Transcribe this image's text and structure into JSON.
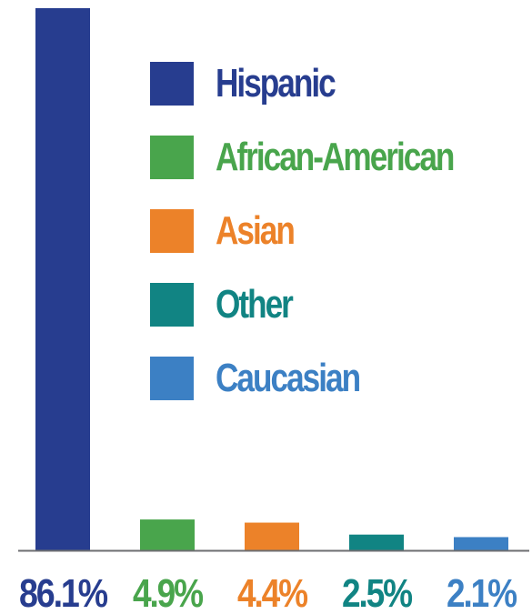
{
  "chart_data": {
    "type": "bar",
    "title": "",
    "xlabel": "",
    "ylabel": "",
    "ylim": [
      0,
      86.1
    ],
    "grid": false,
    "legend_placement": "top-right",
    "categories": [
      "Hispanic",
      "African-American",
      "Asian",
      "Other",
      "Caucasian"
    ],
    "values": [
      86.1,
      4.9,
      4.4,
      2.5,
      2.1
    ],
    "value_labels": [
      "86.1%",
      "4.9%",
      "4.4%",
      "2.5%",
      "2.1%"
    ],
    "colors": [
      "#273d8f",
      "#49a54c",
      "#ec8229",
      "#118483",
      "#3c80c4"
    ]
  }
}
